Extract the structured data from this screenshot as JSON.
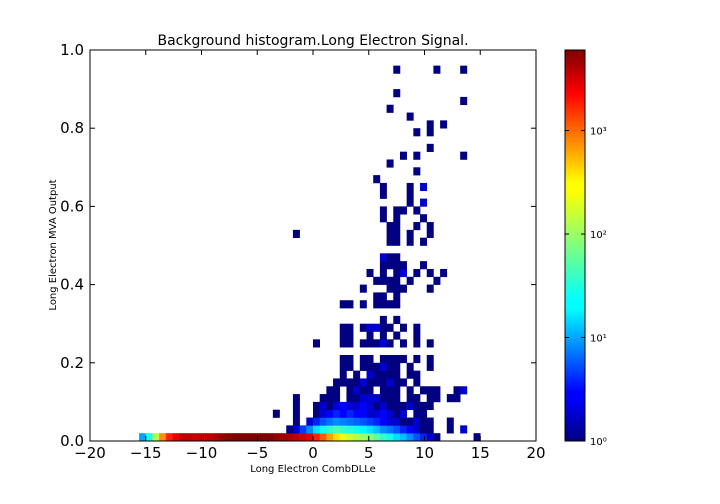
{
  "chart_data": {
    "type": "heatmap",
    "title": "Background histogram.Long Electron Signal.",
    "xlabel": "Long Electron CombDLLe",
    "ylabel": "Long Electron MVA Output",
    "xlim": [
      -20,
      20
    ],
    "ylim": [
      0.0,
      1.0
    ],
    "x_ticks": [
      -20,
      -15,
      -10,
      -5,
      0,
      5,
      10,
      15,
      20
    ],
    "x_tick_labels": [
      "−20",
      "−15",
      "−10",
      "−5",
      "0",
      "5",
      "10",
      "15",
      "20"
    ],
    "y_ticks": [
      0.0,
      0.2,
      0.4,
      0.6,
      0.8,
      1.0
    ],
    "y_tick_labels": [
      "0.0",
      "0.2",
      "0.4",
      "0.6",
      "0.8",
      "1.0"
    ],
    "colormap": "jet",
    "color_scale": "log",
    "colorbar_range": [
      1,
      6000
    ],
    "colorbar_ticks": [
      1,
      10,
      100,
      1000
    ],
    "colorbar_tick_labels": [
      "10⁰",
      "10¹",
      "10²",
      "10³"
    ],
    "grid": false,
    "bin_width_x": 0.6,
    "bin_width_y": 0.02,
    "cells": [
      [
        -15.3,
        0.01,
        12
      ],
      [
        -14.7,
        0.01,
        30
      ],
      [
        -14.1,
        0.01,
        120
      ],
      [
        -13.5,
        0.01,
        600
      ],
      [
        -12.9,
        0.01,
        1500
      ],
      [
        -12.3,
        0.01,
        2500
      ],
      [
        -11.7,
        0.01,
        3500
      ],
      [
        -11.1,
        0.01,
        3500
      ],
      [
        -10.5,
        0.01,
        3200
      ],
      [
        -9.9,
        0.01,
        3500
      ],
      [
        -9.3,
        0.01,
        3500
      ],
      [
        -8.7,
        0.01,
        4000
      ],
      [
        -8.1,
        0.01,
        5000
      ],
      [
        -7.5,
        0.01,
        5500
      ],
      [
        -6.9,
        0.01,
        6000
      ],
      [
        -6.3,
        0.01,
        6000
      ],
      [
        -5.7,
        0.01,
        6000
      ],
      [
        -5.1,
        0.01,
        6000
      ],
      [
        -4.5,
        0.01,
        6000
      ],
      [
        -3.9,
        0.01,
        6000
      ],
      [
        -3.3,
        0.01,
        5000
      ],
      [
        -2.7,
        0.01,
        4500
      ],
      [
        -2.1,
        0.01,
        4000
      ],
      [
        -1.5,
        0.01,
        3500
      ],
      [
        -0.9,
        0.01,
        3000
      ],
      [
        -0.3,
        0.01,
        2500
      ],
      [
        0.3,
        0.01,
        1500
      ],
      [
        0.9,
        0.01,
        900
      ],
      [
        1.5,
        0.01,
        500
      ],
      [
        2.1,
        0.01,
        300
      ],
      [
        2.7,
        0.01,
        200
      ],
      [
        3.3,
        0.01,
        150
      ],
      [
        3.9,
        0.01,
        120
      ],
      [
        4.5,
        0.01,
        100
      ],
      [
        5.1,
        0.01,
        80
      ],
      [
        5.7,
        0.01,
        60
      ],
      [
        6.3,
        0.01,
        40
      ],
      [
        6.9,
        0.01,
        30
      ],
      [
        7.5,
        0.01,
        20
      ],
      [
        8.1,
        0.01,
        15
      ],
      [
        8.7,
        0.01,
        10
      ],
      [
        9.3,
        0.01,
        6
      ],
      [
        9.9,
        0.01,
        4
      ],
      [
        10.5,
        0.01,
        2
      ],
      [
        11.1,
        0.01,
        1
      ],
      [
        14.7,
        0.01,
        1
      ],
      [
        -2.1,
        0.03,
        1
      ],
      [
        -1.5,
        0.03,
        2
      ],
      [
        -0.9,
        0.03,
        5
      ],
      [
        -0.3,
        0.03,
        10
      ],
      [
        0.3,
        0.03,
        20
      ],
      [
        0.9,
        0.03,
        30
      ],
      [
        1.5,
        0.03,
        40
      ],
      [
        2.1,
        0.03,
        50
      ],
      [
        2.7,
        0.03,
        40
      ],
      [
        3.3,
        0.03,
        35
      ],
      [
        3.9,
        0.03,
        30
      ],
      [
        4.5,
        0.03,
        25
      ],
      [
        5.1,
        0.03,
        20
      ],
      [
        5.7,
        0.03,
        15
      ],
      [
        6.3,
        0.03,
        10
      ],
      [
        6.9,
        0.03,
        8
      ],
      [
        7.5,
        0.03,
        6
      ],
      [
        8.1,
        0.03,
        4
      ],
      [
        8.7,
        0.03,
        3
      ],
      [
        9.3,
        0.03,
        2
      ],
      [
        9.9,
        0.03,
        1
      ],
      [
        10.5,
        0.03,
        1
      ],
      [
        12.3,
        0.03,
        1
      ],
      [
        13.5,
        0.03,
        2
      ],
      [
        -1.5,
        0.05,
        1
      ],
      [
        -0.3,
        0.05,
        2
      ],
      [
        0.3,
        0.05,
        4
      ],
      [
        0.9,
        0.05,
        6
      ],
      [
        1.5,
        0.05,
        8
      ],
      [
        2.1,
        0.05,
        10
      ],
      [
        2.7,
        0.05,
        9
      ],
      [
        3.3,
        0.05,
        8
      ],
      [
        3.9,
        0.05,
        7
      ],
      [
        4.5,
        0.05,
        6
      ],
      [
        5.1,
        0.05,
        5
      ],
      [
        5.7,
        0.05,
        4
      ],
      [
        6.3,
        0.05,
        3
      ],
      [
        6.9,
        0.05,
        2
      ],
      [
        7.5,
        0.05,
        2
      ],
      [
        8.1,
        0.05,
        1
      ],
      [
        8.7,
        0.05,
        1
      ],
      [
        9.3,
        0.05,
        2
      ],
      [
        9.9,
        0.05,
        1
      ],
      [
        10.5,
        0.05,
        1
      ],
      [
        12.3,
        0.05,
        1
      ],
      [
        -3.3,
        0.07,
        1
      ],
      [
        -1.5,
        0.07,
        1
      ],
      [
        0.3,
        0.07,
        1
      ],
      [
        0.9,
        0.07,
        2
      ],
      [
        1.5,
        0.07,
        3
      ],
      [
        2.1,
        0.07,
        4
      ],
      [
        2.7,
        0.07,
        3
      ],
      [
        3.3,
        0.07,
        4
      ],
      [
        3.9,
        0.07,
        3
      ],
      [
        4.5,
        0.07,
        3
      ],
      [
        5.1,
        0.07,
        2
      ],
      [
        5.7,
        0.07,
        2
      ],
      [
        6.3,
        0.07,
        3
      ],
      [
        6.9,
        0.07,
        2
      ],
      [
        7.5,
        0.07,
        1
      ],
      [
        8.1,
        0.07,
        2
      ],
      [
        9.3,
        0.07,
        1
      ],
      [
        9.9,
        0.07,
        1
      ],
      [
        -1.5,
        0.09,
        1
      ],
      [
        0.3,
        0.09,
        1
      ],
      [
        0.9,
        0.09,
        2
      ],
      [
        1.5,
        0.09,
        1
      ],
      [
        2.1,
        0.09,
        2
      ],
      [
        2.7,
        0.09,
        3
      ],
      [
        3.3,
        0.09,
        2
      ],
      [
        3.9,
        0.09,
        2
      ],
      [
        4.5,
        0.09,
        3
      ],
      [
        5.1,
        0.09,
        2
      ],
      [
        5.7,
        0.09,
        1
      ],
      [
        6.3,
        0.09,
        2
      ],
      [
        6.9,
        0.09,
        1
      ],
      [
        7.5,
        0.09,
        1
      ],
      [
        8.1,
        0.09,
        1
      ],
      [
        8.7,
        0.09,
        2
      ],
      [
        9.3,
        0.09,
        1
      ],
      [
        9.9,
        0.09,
        1
      ],
      [
        10.5,
        0.09,
        1
      ],
      [
        -1.5,
        0.11,
        1
      ],
      [
        0.9,
        0.11,
        1
      ],
      [
        1.5,
        0.11,
        1
      ],
      [
        2.1,
        0.11,
        1
      ],
      [
        3.3,
        0.11,
        1
      ],
      [
        3.9,
        0.11,
        1
      ],
      [
        4.5,
        0.11,
        2
      ],
      [
        5.1,
        0.11,
        2
      ],
      [
        5.7,
        0.11,
        2
      ],
      [
        6.3,
        0.11,
        1
      ],
      [
        6.9,
        0.11,
        1
      ],
      [
        7.5,
        0.11,
        1
      ],
      [
        8.7,
        0.11,
        1
      ],
      [
        9.3,
        0.11,
        1
      ],
      [
        10.5,
        0.11,
        1
      ],
      [
        11.1,
        0.11,
        1
      ],
      [
        12.3,
        0.11,
        1
      ],
      [
        12.9,
        0.11,
        1
      ],
      [
        1.5,
        0.13,
        1
      ],
      [
        2.1,
        0.13,
        1
      ],
      [
        3.3,
        0.13,
        1
      ],
      [
        3.9,
        0.13,
        2
      ],
      [
        4.5,
        0.13,
        1
      ],
      [
        5.1,
        0.13,
        1
      ],
      [
        6.3,
        0.13,
        1
      ],
      [
        6.9,
        0.13,
        1
      ],
      [
        7.5,
        0.13,
        1
      ],
      [
        8.7,
        0.13,
        1
      ],
      [
        9.9,
        0.13,
        1
      ],
      [
        10.5,
        0.13,
        1
      ],
      [
        11.1,
        0.13,
        1
      ],
      [
        12.9,
        0.13,
        1
      ],
      [
        13.5,
        0.13,
        2
      ],
      [
        2.1,
        0.15,
        1
      ],
      [
        2.7,
        0.15,
        1
      ],
      [
        3.3,
        0.15,
        1
      ],
      [
        3.9,
        0.15,
        1
      ],
      [
        4.5,
        0.15,
        2
      ],
      [
        5.1,
        0.15,
        1
      ],
      [
        5.7,
        0.15,
        1
      ],
      [
        6.3,
        0.15,
        1
      ],
      [
        6.9,
        0.15,
        2
      ],
      [
        7.5,
        0.15,
        1
      ],
      [
        8.1,
        0.15,
        1
      ],
      [
        9.3,
        0.15,
        1
      ],
      [
        2.7,
        0.17,
        1
      ],
      [
        3.9,
        0.17,
        1
      ],
      [
        5.1,
        0.17,
        2
      ],
      [
        5.7,
        0.17,
        1
      ],
      [
        6.3,
        0.17,
        1
      ],
      [
        6.9,
        0.17,
        1
      ],
      [
        7.5,
        0.17,
        1
      ],
      [
        8.7,
        0.17,
        1
      ],
      [
        9.3,
        0.17,
        1
      ],
      [
        2.7,
        0.19,
        1
      ],
      [
        3.3,
        0.19,
        1
      ],
      [
        4.5,
        0.19,
        1
      ],
      [
        5.1,
        0.19,
        1
      ],
      [
        5.7,
        0.19,
        1
      ],
      [
        6.3,
        0.19,
        2
      ],
      [
        6.9,
        0.19,
        1
      ],
      [
        7.5,
        0.19,
        1
      ],
      [
        8.7,
        0.19,
        1
      ],
      [
        10.5,
        0.19,
        1
      ],
      [
        2.7,
        0.21,
        1
      ],
      [
        3.3,
        0.21,
        1
      ],
      [
        4.5,
        0.21,
        1
      ],
      [
        5.1,
        0.21,
        1
      ],
      [
        6.3,
        0.21,
        1
      ],
      [
        6.9,
        0.21,
        1
      ],
      [
        7.5,
        0.21,
        1
      ],
      [
        8.1,
        0.21,
        1
      ],
      [
        9.3,
        0.21,
        1
      ],
      [
        10.5,
        0.21,
        1
      ],
      [
        0.3,
        0.25,
        1
      ],
      [
        2.7,
        0.25,
        1
      ],
      [
        3.3,
        0.25,
        1
      ],
      [
        4.5,
        0.25,
        1
      ],
      [
        5.1,
        0.25,
        1
      ],
      [
        5.7,
        0.25,
        1
      ],
      [
        6.3,
        0.25,
        2
      ],
      [
        6.9,
        0.25,
        1
      ],
      [
        8.1,
        0.25,
        1
      ],
      [
        9.3,
        0.25,
        1
      ],
      [
        10.5,
        0.25,
        1
      ],
      [
        2.7,
        0.29,
        1
      ],
      [
        3.3,
        0.29,
        1
      ],
      [
        4.5,
        0.29,
        1
      ],
      [
        5.1,
        0.29,
        2
      ],
      [
        5.7,
        0.29,
        2
      ],
      [
        6.3,
        0.29,
        1
      ],
      [
        6.9,
        0.29,
        1
      ],
      [
        8.1,
        0.29,
        1
      ],
      [
        9.3,
        0.29,
        1
      ],
      [
        2.7,
        0.27,
        1
      ],
      [
        3.3,
        0.27,
        1
      ],
      [
        5.1,
        0.27,
        1
      ],
      [
        6.3,
        0.27,
        1
      ],
      [
        7.5,
        0.27,
        1
      ],
      [
        9.3,
        0.27,
        1
      ],
      [
        6.3,
        0.31,
        1
      ],
      [
        7.5,
        0.31,
        1
      ],
      [
        2.7,
        0.35,
        1
      ],
      [
        4.5,
        0.35,
        1
      ],
      [
        6.3,
        0.35,
        1
      ],
      [
        7.5,
        0.35,
        1
      ],
      [
        3.3,
        0.35,
        1
      ],
      [
        5.7,
        0.35,
        1
      ],
      [
        6.9,
        0.35,
        1
      ],
      [
        7.5,
        0.37,
        1
      ],
      [
        6.3,
        0.37,
        1
      ],
      [
        5.7,
        0.37,
        1
      ],
      [
        4.5,
        0.39,
        1
      ],
      [
        6.9,
        0.39,
        1
      ],
      [
        7.5,
        0.39,
        1
      ],
      [
        8.1,
        0.39,
        1
      ],
      [
        10.5,
        0.39,
        1
      ],
      [
        5.7,
        0.41,
        1
      ],
      [
        6.3,
        0.41,
        1
      ],
      [
        6.9,
        0.41,
        1
      ],
      [
        7.5,
        0.41,
        1
      ],
      [
        8.7,
        0.41,
        1
      ],
      [
        11.1,
        0.41,
        1
      ],
      [
        5.1,
        0.43,
        1
      ],
      [
        6.3,
        0.43,
        1
      ],
      [
        7.5,
        0.43,
        1
      ],
      [
        8.1,
        0.43,
        2
      ],
      [
        9.3,
        0.43,
        1
      ],
      [
        10.5,
        0.43,
        1
      ],
      [
        11.7,
        0.43,
        1
      ],
      [
        6.3,
        0.45,
        1
      ],
      [
        6.9,
        0.45,
        1
      ],
      [
        7.5,
        0.45,
        1
      ],
      [
        8.1,
        0.45,
        1
      ],
      [
        9.9,
        0.45,
        1
      ],
      [
        6.3,
        0.47,
        2
      ],
      [
        6.9,
        0.47,
        1
      ],
      [
        7.5,
        0.47,
        1
      ],
      [
        6.9,
        0.51,
        1
      ],
      [
        7.5,
        0.51,
        1
      ],
      [
        8.7,
        0.51,
        1
      ],
      [
        9.9,
        0.51,
        1
      ],
      [
        -1.5,
        0.53,
        1
      ],
      [
        6.9,
        0.53,
        1
      ],
      [
        7.5,
        0.53,
        1
      ],
      [
        8.7,
        0.53,
        1
      ],
      [
        10.5,
        0.53,
        1
      ],
      [
        6.9,
        0.55,
        1
      ],
      [
        7.5,
        0.55,
        1
      ],
      [
        9.3,
        0.55,
        1
      ],
      [
        10.5,
        0.55,
        1
      ],
      [
        6.3,
        0.57,
        1
      ],
      [
        7.5,
        0.57,
        1
      ],
      [
        9.9,
        0.57,
        1
      ],
      [
        6.3,
        0.59,
        1
      ],
      [
        7.5,
        0.59,
        1
      ],
      [
        8.1,
        0.59,
        1
      ],
      [
        9.3,
        0.59,
        1
      ],
      [
        8.7,
        0.61,
        1
      ],
      [
        9.9,
        0.61,
        2
      ],
      [
        6.3,
        0.63,
        1
      ],
      [
        8.7,
        0.63,
        1
      ],
      [
        6.3,
        0.65,
        1
      ],
      [
        8.7,
        0.65,
        1
      ],
      [
        9.9,
        0.65,
        2
      ],
      [
        5.7,
        0.67,
        1
      ],
      [
        9.3,
        0.69,
        1
      ],
      [
        6.9,
        0.71,
        1
      ],
      [
        8.1,
        0.73,
        1
      ],
      [
        9.3,
        0.73,
        1
      ],
      [
        13.5,
        0.73,
        1
      ],
      [
        10.5,
        0.75,
        1
      ],
      [
        9.3,
        0.79,
        1
      ],
      [
        11.7,
        0.81,
        1
      ],
      [
        10.5,
        0.81,
        1
      ],
      [
        10.5,
        0.79,
        1
      ],
      [
        8.7,
        0.83,
        1
      ],
      [
        6.9,
        0.85,
        1
      ],
      [
        13.5,
        0.87,
        1
      ],
      [
        7.5,
        0.89,
        1
      ],
      [
        7.5,
        0.95,
        1
      ],
      [
        11.1,
        0.95,
        1
      ],
      [
        13.5,
        0.95,
        1
      ]
    ]
  }
}
